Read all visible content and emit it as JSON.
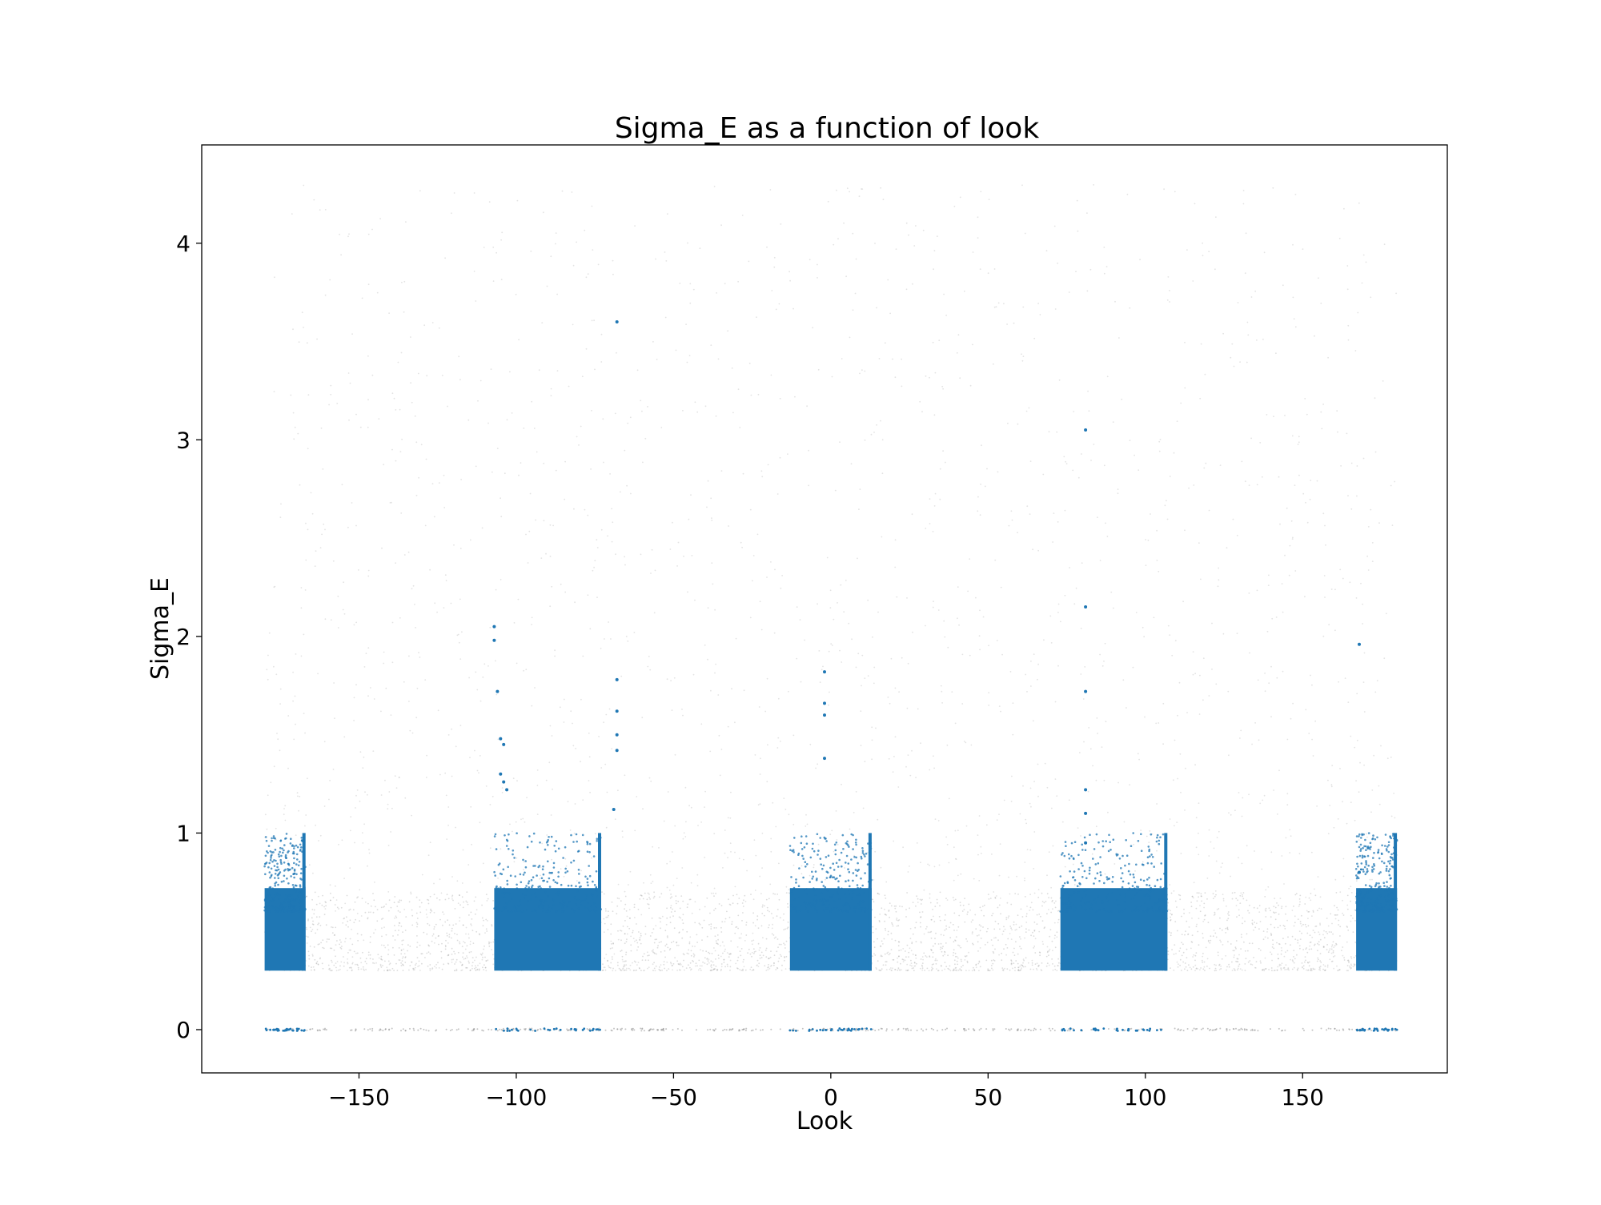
{
  "chart_data": {
    "type": "scatter",
    "title": "Sigma_E as a function of look",
    "xlabel": "Look",
    "ylabel": "Sigma_E",
    "xlim": [
      -200,
      196
    ],
    "ylim": [
      -0.22,
      4.5
    ],
    "x_ticks": [
      {
        "value": -150,
        "label": "−150"
      },
      {
        "value": -100,
        "label": "−100"
      },
      {
        "value": -50,
        "label": "−50"
      },
      {
        "value": 0,
        "label": "0"
      },
      {
        "value": 50,
        "label": "50"
      },
      {
        "value": 100,
        "label": "100"
      },
      {
        "value": 150,
        "label": "150"
      }
    ],
    "y_ticks": [
      {
        "value": 0,
        "label": "0"
      },
      {
        "value": 1,
        "label": "1"
      },
      {
        "value": 2,
        "label": "2"
      },
      {
        "value": 3,
        "label": "3"
      },
      {
        "value": 4,
        "label": "4"
      }
    ],
    "grid": false,
    "legend": "none",
    "series": [
      {
        "color": "#b0b0b0",
        "x_range": [
          -180,
          180
        ],
        "y_range": [
          0.3,
          4.3
        ],
        "dense_band": [
          0.3,
          0.7
        ],
        "zero_cluster": true
      },
      {
        "color": "#1f77b4",
        "look_ranges": [
          [
            -180,
            -167
          ],
          [
            -107,
            -73
          ],
          [
            -13,
            13
          ],
          [
            73,
            107
          ],
          [
            167,
            180
          ]
        ],
        "band": [
          0.3,
          1.0
        ],
        "zero_cluster": true,
        "outliers": [
          {
            "x": -68,
            "y": 3.6
          },
          {
            "x": -68,
            "y": 1.78
          },
          {
            "x": -68,
            "y": 1.62
          },
          {
            "x": -68,
            "y": 1.5
          },
          {
            "x": -68,
            "y": 1.42
          },
          {
            "x": -69,
            "y": 1.12
          },
          {
            "x": -107,
            "y": 2.05
          },
          {
            "x": -107,
            "y": 1.98
          },
          {
            "x": -106,
            "y": 1.72
          },
          {
            "x": -105,
            "y": 1.48
          },
          {
            "x": -104,
            "y": 1.45
          },
          {
            "x": -105,
            "y": 1.3
          },
          {
            "x": -104,
            "y": 1.26
          },
          {
            "x": -103,
            "y": 1.22
          },
          {
            "x": -2,
            "y": 1.82
          },
          {
            "x": -2,
            "y": 1.66
          },
          {
            "x": -2,
            "y": 1.6
          },
          {
            "x": -2,
            "y": 1.38
          },
          {
            "x": 81,
            "y": 3.05
          },
          {
            "x": 81,
            "y": 2.15
          },
          {
            "x": 81,
            "y": 1.72
          },
          {
            "x": 81,
            "y": 1.22
          },
          {
            "x": 81,
            "y": 1.1
          },
          {
            "x": 81,
            "y": 0.95
          },
          {
            "x": 168,
            "y": 1.96
          },
          {
            "x": 168,
            "y": 0.8
          }
        ]
      }
    ]
  }
}
